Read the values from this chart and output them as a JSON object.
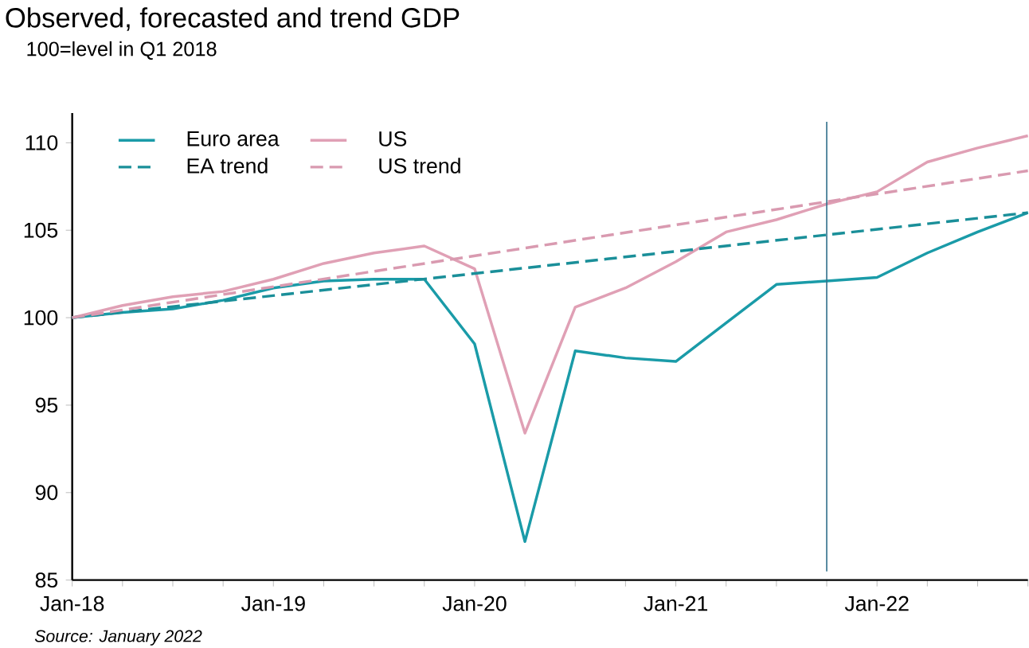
{
  "chart_data": {
    "type": "line",
    "title": "Observed, forecasted and trend GDP",
    "subtitle": "100=level in Q1 2018",
    "annotations": [
      "Source: January 2022"
    ],
    "x": [
      "2018-01",
      "2018-04",
      "2018-07",
      "2018-10",
      "2019-01",
      "2019-04",
      "2019-07",
      "2019-10",
      "2020-01",
      "2020-04",
      "2020-07",
      "2020-10",
      "2021-01",
      "2021-04",
      "2021-07",
      "2021-10",
      "2022-01",
      "2022-04",
      "2022-07",
      "2022-10"
    ],
    "series": [
      {
        "name": "Euro area",
        "color": "#1a9ba8",
        "line_style": "solid",
        "values": [
          100,
          100.3,
          100.5,
          101.0,
          101.7,
          102.1,
          102.2,
          102.2,
          98.5,
          87.2,
          98.1,
          97.7,
          97.5,
          99.7,
          101.9,
          102.1,
          102.3,
          103.7,
          104.9,
          106.0
        ]
      },
      {
        "name": "US",
        "color": "#e0a0b5",
        "line_style": "solid",
        "values": [
          100,
          100.7,
          101.2,
          101.5,
          102.2,
          103.1,
          103.7,
          104.1,
          102.8,
          93.4,
          100.6,
          101.7,
          103.2,
          104.9,
          105.6,
          106.5,
          107.2,
          108.9,
          109.7,
          110.4
        ]
      },
      {
        "name": "EA trend",
        "color": "#1a8f99",
        "line_style": "dashed",
        "x": [
          "2018-01",
          "2022-10"
        ],
        "values": [
          100,
          106.0
        ]
      },
      {
        "name": "US trend",
        "color": "#d99ab0",
        "line_style": "dashed",
        "x": [
          "2018-01",
          "2022-10"
        ],
        "values": [
          100,
          108.4
        ]
      }
    ],
    "xlim": [
      "2018-01",
      "2022-10"
    ],
    "ylim": [
      85,
      111.7
    ],
    "yticks": [
      85,
      90,
      95,
      100,
      105,
      110
    ],
    "xticks": [
      {
        "value": "2018-01",
        "label": "Jan-18"
      },
      {
        "value": "2018-04",
        "label": null
      },
      {
        "value": "2018-07",
        "label": null
      },
      {
        "value": "2018-10",
        "label": null
      },
      {
        "value": "2019-01",
        "label": "Jan-19"
      },
      {
        "value": "2019-04",
        "label": null
      },
      {
        "value": "2019-07",
        "label": null
      },
      {
        "value": "2019-10",
        "label": null
      },
      {
        "value": "2020-01",
        "label": "Jan-20"
      },
      {
        "value": "2020-04",
        "label": null
      },
      {
        "value": "2020-07",
        "label": null
      },
      {
        "value": "2020-10",
        "label": null
      },
      {
        "value": "2021-01",
        "label": "Jan-21"
      },
      {
        "value": "2021-04",
        "label": null
      },
      {
        "value": "2021-07",
        "label": null
      },
      {
        "value": "2021-10",
        "label": null
      },
      {
        "value": "2022-01",
        "label": "Jan-22"
      },
      {
        "value": "2022-04",
        "label": null
      },
      {
        "value": "2022-07",
        "label": null
      },
      {
        "value": "2022-10",
        "label": null
      }
    ],
    "ref_lines": [
      {
        "axis": "x",
        "value": "2021-10",
        "color": "#2f6f8a"
      }
    ],
    "legend": "top left",
    "grid": false,
    "marker": "none"
  }
}
